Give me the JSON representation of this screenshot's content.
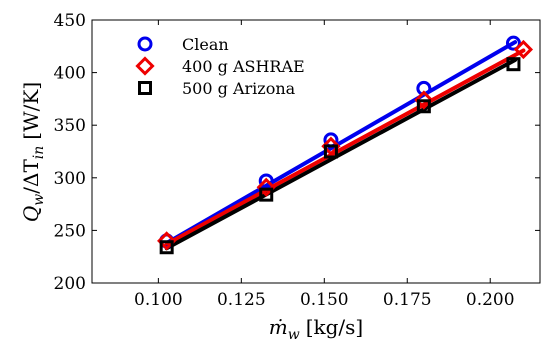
{
  "chart_data": {
    "type": "line",
    "title": "",
    "xlabel": {
      "symbol": "ṁ",
      "sub": "w",
      "unit": "[kg/s]"
    },
    "ylabel": {
      "q": "Q",
      "q_sub": "w",
      "mid": "/ΔT",
      "t_sub": "in",
      "unit": "[W/K]"
    },
    "xlim": [
      0.08,
      0.215
    ],
    "ylim": [
      200,
      450
    ],
    "xticks": [
      0.1,
      0.125,
      0.15,
      0.175,
      0.2
    ],
    "xtick_labels": [
      "0.100",
      "0.125",
      "0.150",
      "0.175",
      "0.200"
    ],
    "yticks": [
      200,
      250,
      300,
      350,
      400,
      450
    ],
    "ytick_labels": [
      "200",
      "250",
      "300",
      "350",
      "400",
      "450"
    ],
    "grid": false,
    "legend_position": "top-left",
    "series": [
      {
        "name": "Clean",
        "color": "#0000ee",
        "marker": "circle",
        "points": [
          [
            0.1025,
            240
          ],
          [
            0.1325,
            297
          ],
          [
            0.152,
            336
          ],
          [
            0.18,
            385
          ],
          [
            0.207,
            428
          ]
        ],
        "fit": [
          [
            0.1025,
            238
          ],
          [
            0.2075,
            429
          ]
        ]
      },
      {
        "name": "400 g ASHRAE",
        "color": "#ee0000",
        "marker": "diamond",
        "points": [
          [
            0.1025,
            240
          ],
          [
            0.1325,
            291
          ],
          [
            0.152,
            330
          ],
          [
            0.18,
            374
          ],
          [
            0.21,
            422
          ]
        ],
        "fit": [
          [
            0.1025,
            237
          ],
          [
            0.21,
            421
          ]
        ]
      },
      {
        "name": "500 g Arizona",
        "color": "#000000",
        "marker": "square",
        "points": [
          [
            0.1025,
            234
          ],
          [
            0.1325,
            284
          ],
          [
            0.152,
            325
          ],
          [
            0.18,
            368
          ],
          [
            0.207,
            408
          ]
        ],
        "fit": [
          [
            0.1025,
            233
          ],
          [
            0.2075,
            412
          ]
        ]
      }
    ]
  }
}
